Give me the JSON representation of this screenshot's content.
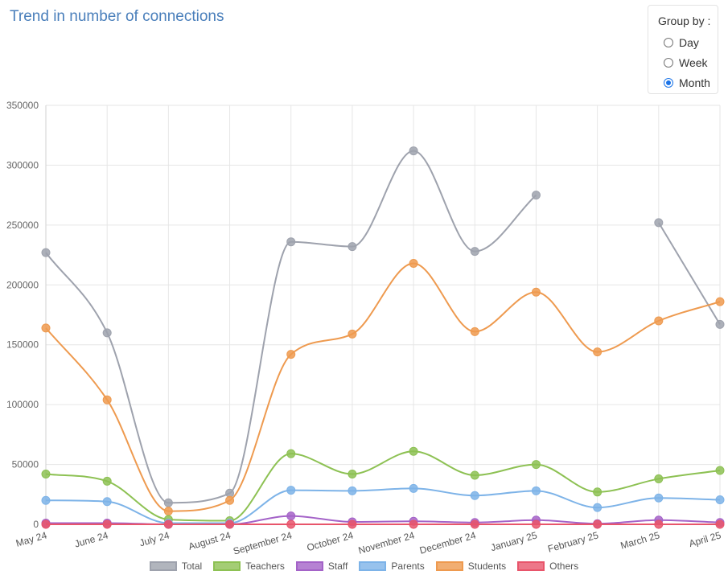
{
  "title": "Trend in number of connections",
  "group_by": {
    "label": "Group by :",
    "options": [
      "Day",
      "Week",
      "Month"
    ],
    "selected": "Month"
  },
  "chart_data": {
    "type": "line",
    "categories": [
      "May 24",
      "June 24",
      "July 24",
      "August 24",
      "September 24",
      "October 24",
      "November 24",
      "December 24",
      "January 25",
      "February 25",
      "March 25",
      "April 25"
    ],
    "ylim": [
      0,
      350000
    ],
    "yticks": [
      0,
      50000,
      100000,
      150000,
      200000,
      250000,
      300000,
      350000
    ],
    "ytick_labels": [
      "0",
      "50000",
      "100000",
      "150000",
      "200000",
      "250000",
      "300000",
      "350000"
    ],
    "grid": true,
    "legend_position": "bottom",
    "series": [
      {
        "name": "Total",
        "color": "#9ea2ad",
        "values": [
          227000,
          160000,
          18000,
          26000,
          236000,
          232000,
          312000,
          228000,
          275000,
          null,
          252000,
          167000
        ]
      },
      {
        "name": "Teachers",
        "color": "#8dc153",
        "values": [
          42000,
          36000,
          4000,
          3000,
          59000,
          42000,
          61000,
          41000,
          50000,
          27000,
          38000,
          45000
        ]
      },
      {
        "name": "Staff",
        "color": "#a463c8",
        "values": [
          1000,
          1000,
          0,
          0,
          7000,
          2000,
          2500,
          1500,
          3500,
          500,
          3500,
          1500
        ]
      },
      {
        "name": "Parents",
        "color": "#7db3e8",
        "values": [
          20000,
          19000,
          1000,
          1000,
          28500,
          28000,
          30000,
          24000,
          28000,
          14000,
          22000,
          20500
        ]
      },
      {
        "name": "Students",
        "color": "#ee9a4f",
        "values": [
          164000,
          104000,
          11000,
          20000,
          142000,
          159000,
          218000,
          161000,
          194000,
          144000,
          170000,
          186000
        ]
      },
      {
        "name": "Others",
        "color": "#e8556b",
        "values": [
          0,
          0,
          0,
          0,
          0,
          0,
          0,
          0,
          0,
          0,
          0,
          0
        ]
      }
    ]
  }
}
